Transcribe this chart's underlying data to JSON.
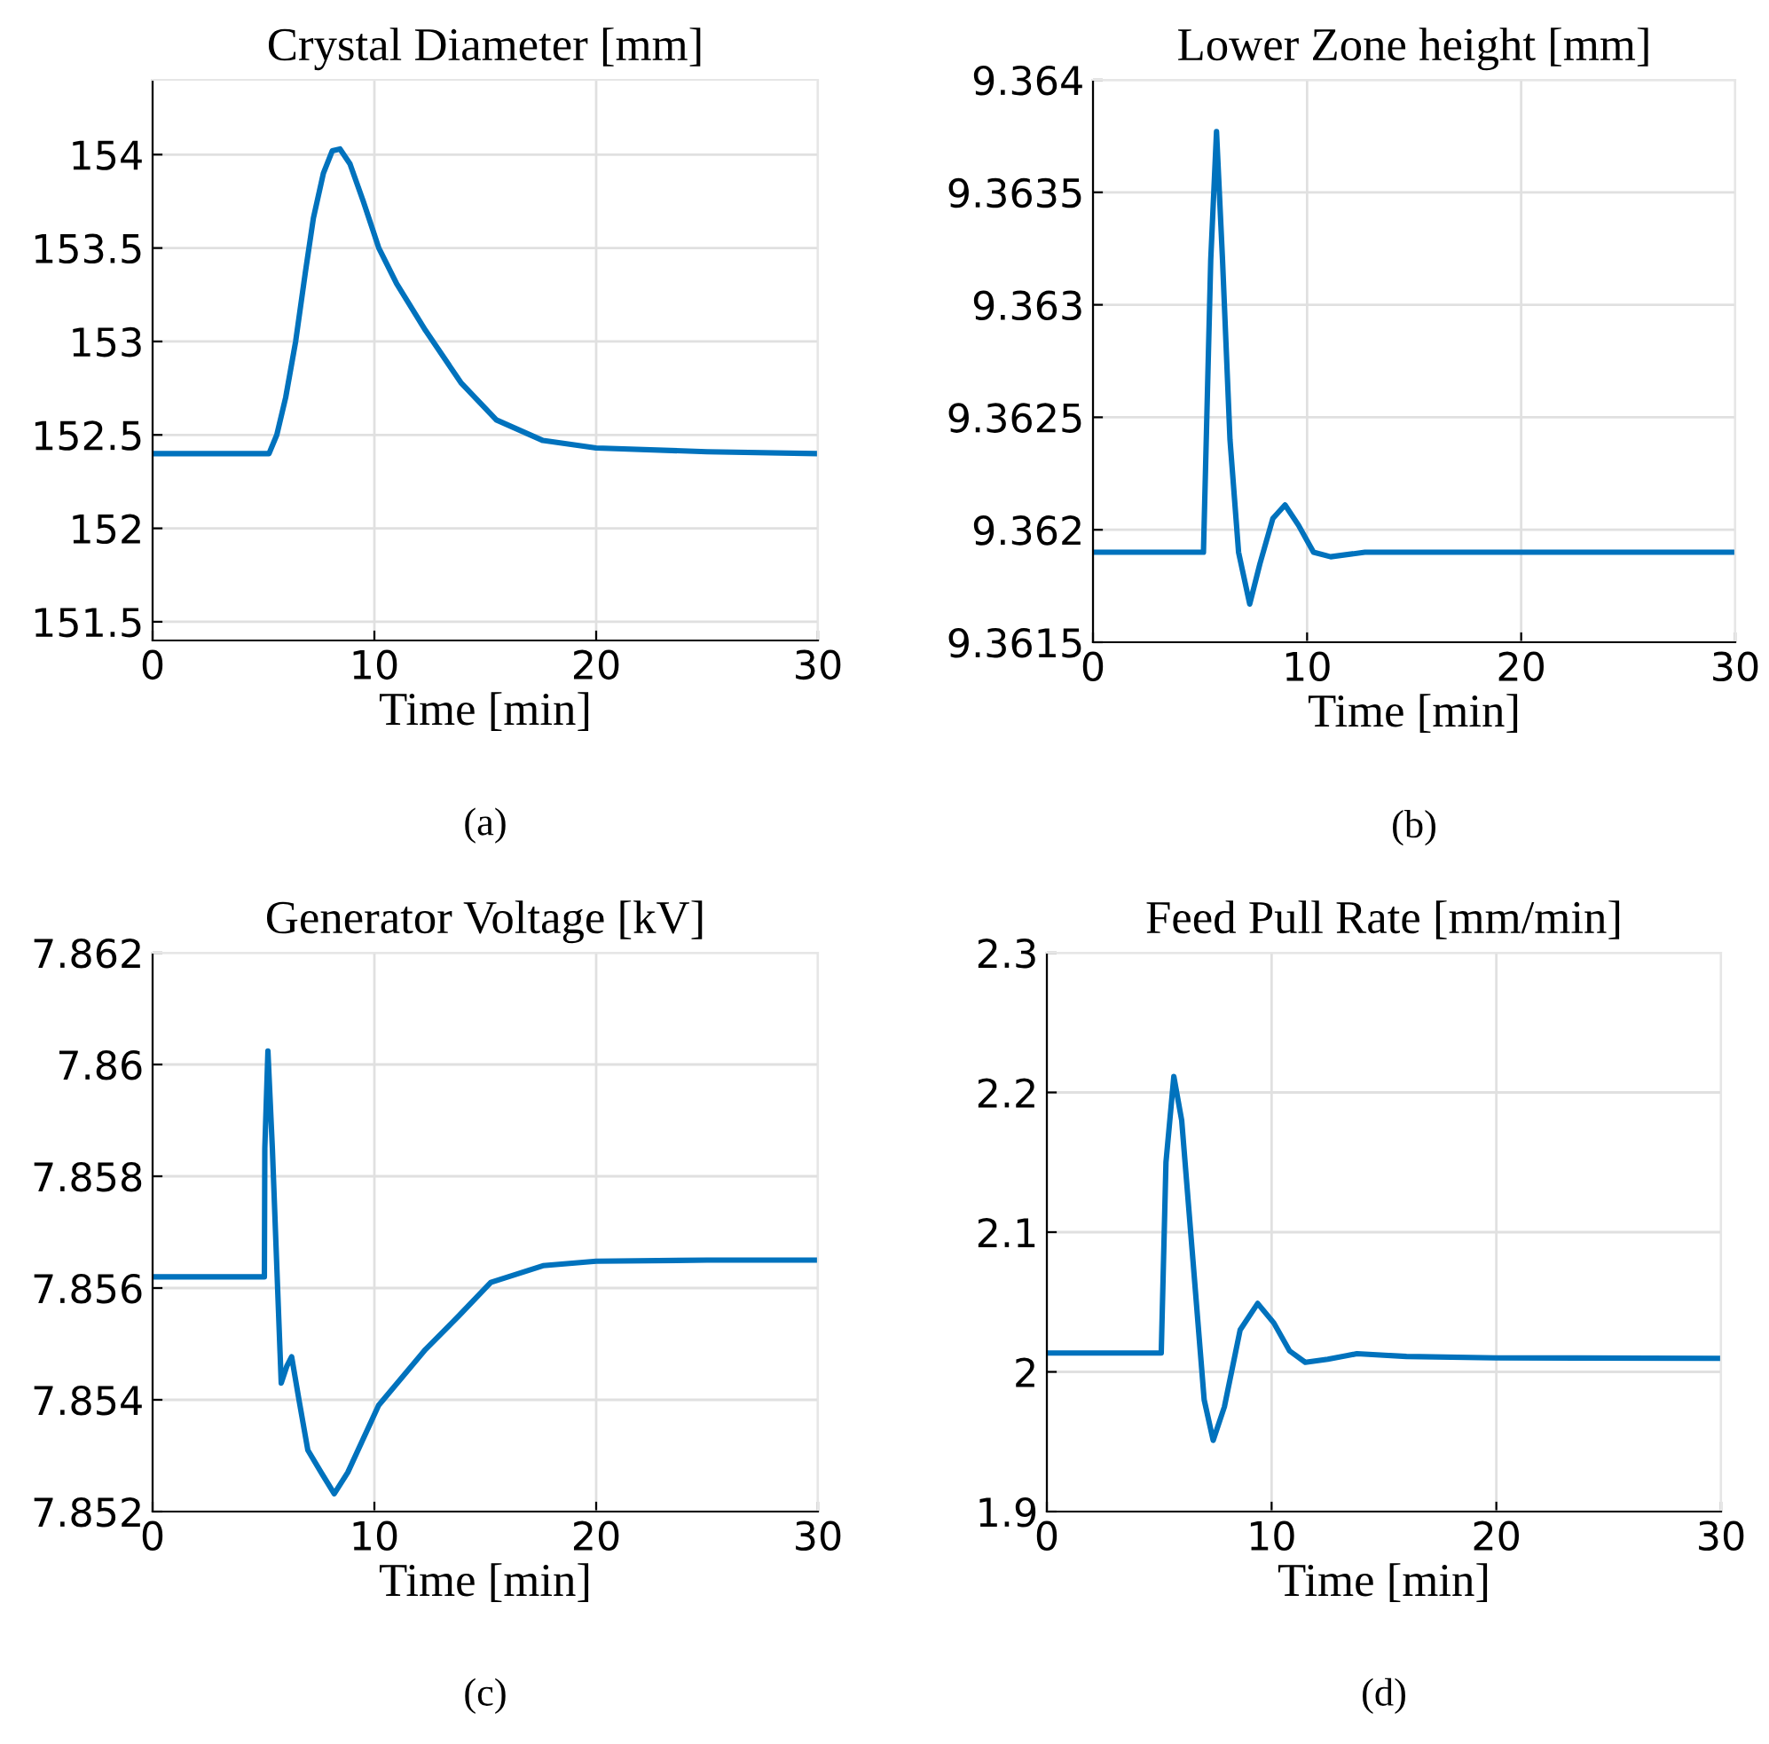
{
  "chart_data": [
    {
      "type": "line",
      "title": "Crystal Diameter [mm]",
      "xlabel": "Time [min]",
      "annotations": [
        "(a)"
      ],
      "grid": true,
      "xlim": [
        0,
        30
      ],
      "xticks": [
        0,
        10,
        20,
        30
      ],
      "ylim": [
        151.4,
        154.4
      ],
      "yticks": [
        151.5,
        152,
        152.5,
        153,
        153.5,
        154
      ],
      "series": [
        {
          "color": "#0072bd",
          "x": [
            0,
            5.25,
            5.6,
            6.0,
            6.45,
            6.9,
            7.25,
            7.7,
            8.1,
            8.45,
            8.9,
            9.5,
            10.2,
            11.0,
            12.3,
            13.9,
            15.5,
            17.6,
            20,
            25,
            30
          ],
          "values": [
            152.4,
            152.4,
            152.5,
            152.7,
            153.0,
            153.38,
            153.66,
            153.9,
            154.02,
            154.03,
            153.95,
            153.75,
            153.5,
            153.31,
            153.06,
            152.78,
            152.58,
            152.47,
            152.43,
            152.41,
            152.4
          ]
        }
      ]
    },
    {
      "type": "line",
      "title": "Lower Zone height [mm]",
      "xlabel": "Time [min]",
      "annotations": [
        "(b)"
      ],
      "grid": true,
      "xlim": [
        0,
        30
      ],
      "xticks": [
        0,
        10,
        20,
        30
      ],
      "ylim": [
        9.3615,
        9.364
      ],
      "yticks": [
        9.3615,
        9.362,
        9.3625,
        9.363,
        9.3635,
        9.364
      ],
      "series": [
        {
          "color": "#0072bd",
          "x": [
            0,
            5.16,
            5.5,
            5.77,
            6.05,
            6.4,
            6.8,
            7.32,
            7.8,
            8.4,
            8.97,
            9.6,
            10.3,
            11.1,
            12.7,
            20,
            30
          ],
          "values": [
            9.3619,
            9.3619,
            9.3632,
            9.36377,
            9.3632,
            9.3624,
            9.3619,
            9.36167,
            9.36185,
            9.36205,
            9.36211,
            9.36202,
            9.3619,
            9.36188,
            9.3619,
            9.3619,
            9.3619
          ]
        }
      ]
    },
    {
      "type": "line",
      "title": "Generator Voltage [kV]",
      "xlabel": "Time [min]",
      "annotations": [
        "(c)"
      ],
      "grid": true,
      "xlim": [
        0,
        30
      ],
      "xticks": [
        0,
        10,
        20,
        30
      ],
      "ylim": [
        7.852,
        7.862
      ],
      "yticks": [
        7.852,
        7.854,
        7.856,
        7.858,
        7.86,
        7.862
      ],
      "series": [
        {
          "color": "#0072bd",
          "x": [
            0,
            5.04,
            5.06,
            5.2,
            5.4,
            5.65,
            5.8,
            6.05,
            6.27,
            6.6,
            7.0,
            7.6,
            8.19,
            8.8,
            10.19,
            12.3,
            13.8,
            15.25,
            17.6,
            20,
            25,
            30
          ],
          "values": [
            7.8562,
            7.8562,
            7.8585,
            7.86024,
            7.8585,
            7.85586,
            7.8543,
            7.8546,
            7.85477,
            7.854,
            7.8531,
            7.8527,
            7.85232,
            7.8527,
            7.8539,
            7.8549,
            7.8555,
            7.8561,
            7.8564,
            7.85648,
            7.8565,
            7.8565
          ]
        }
      ]
    },
    {
      "type": "line",
      "title": "Feed Pull Rate [mm/min]",
      "xlabel": "Time [min]",
      "annotations": [
        "(d)"
      ],
      "grid": true,
      "xlim": [
        0,
        30
      ],
      "xticks": [
        0,
        10,
        20,
        30
      ],
      "ylim": [
        1.9,
        2.3
      ],
      "yticks": [
        1.9,
        2,
        2.1,
        2.2,
        2.3
      ],
      "series": [
        {
          "color": "#0072bd",
          "x": [
            0,
            5.09,
            5.3,
            5.65,
            6.0,
            6.5,
            7.0,
            7.4,
            7.9,
            8.6,
            9.38,
            10.1,
            10.8,
            11.5,
            12.5,
            13.8,
            16,
            20,
            30
          ],
          "values": [
            2.0135,
            2.0135,
            2.15,
            2.2114,
            2.18,
            2.08,
            1.98,
            1.951,
            1.975,
            2.03,
            2.049,
            2.035,
            2.015,
            2.0068,
            2.009,
            2.013,
            2.011,
            2.01,
            2.0097
          ]
        }
      ]
    }
  ]
}
